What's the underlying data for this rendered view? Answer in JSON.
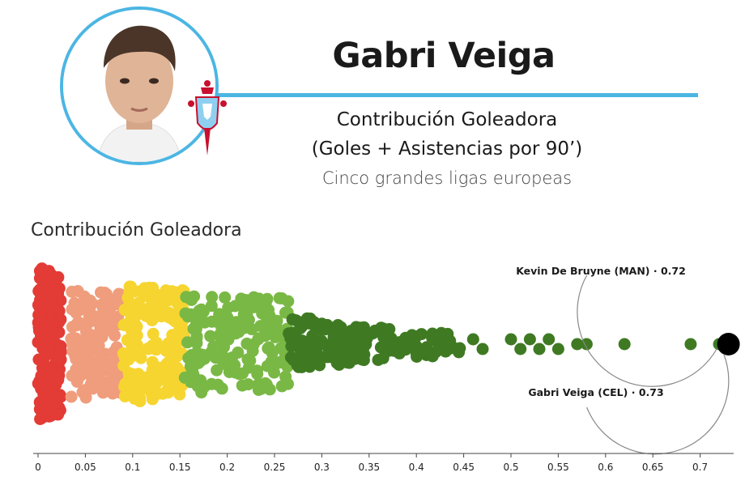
{
  "header": {
    "player_name": "Gabri Veiga",
    "subtitle_line1": "Contribución Goleadora",
    "subtitle_line2": "(Goles + Asistencias por 90’)",
    "subtitle_line3": "Cinco grandes ligas europeas",
    "accent_color": "#4cb6e3"
  },
  "chart_heading": "Contribución Goleadora",
  "chart_data": {
    "type": "scatter",
    "subtype": "beeswarm",
    "title": "Contribución Goleadora",
    "xlabel": "",
    "xlim": [
      0,
      0.73
    ],
    "x_ticks": [
      "0",
      "0.05",
      "0.1",
      "0.15",
      "0.2",
      "0.25",
      "0.3",
      "0.35",
      "0.4",
      "0.45",
      "0.5",
      "0.55",
      "0.6",
      "0.65",
      "0.7"
    ],
    "x_tick_values": [
      0,
      0.05,
      0.1,
      0.15,
      0.2,
      0.25,
      0.3,
      0.35,
      0.4,
      0.45,
      0.5,
      0.55,
      0.6,
      0.65,
      0.7
    ],
    "color_bands": [
      {
        "range": [
          0,
          0.03
        ],
        "color": "#e33b35"
      },
      {
        "range": [
          0.03,
          0.09
        ],
        "color": "#ef9d7c"
      },
      {
        "range": [
          0.09,
          0.155
        ],
        "color": "#f7d531"
      },
      {
        "range": [
          0.155,
          0.265
        ],
        "color": "#79b845"
      },
      {
        "range": [
          0.265,
          0.73
        ],
        "color": "#3f7a23"
      }
    ],
    "tail_points": [
      0.46,
      0.47,
      0.5,
      0.51,
      0.52,
      0.53,
      0.54,
      0.55,
      0.57,
      0.58,
      0.62,
      0.69,
      0.72
    ],
    "highlight": [
      {
        "label": "Kevin De Bruyne (MAN) · 0.72",
        "value": 0.72
      },
      {
        "label": "Gabri Veiga (CEL) · 0.73",
        "value": 0.73
      }
    ],
    "highlight_color": "#000000",
    "grid": false
  }
}
